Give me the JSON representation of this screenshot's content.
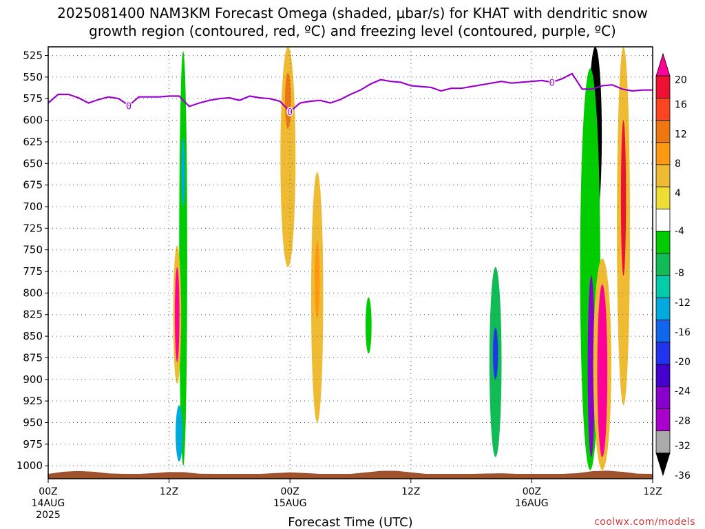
{
  "title_line1": "2025081400 NAM3KM Forecast Omega (shaded, μbar/s) for KHAT with dendritic snow",
  "title_line2": "growth region (contoured, red, ºC) and freezing level (contoured, purple, ºC)",
  "credit": "coolwx.com/models",
  "chart_data": {
    "type": "heatmap",
    "title": "2025081400 NAM3KM Forecast Omega (shaded, μbar/s) for KHAT with dendritic snow growth region (contoured, red, ºC) and freezing level (contoured, purple, ºC)",
    "xlabel": "Forecast Time (UTC)",
    "ylabel": "",
    "x_range_hours": [
      0,
      60
    ],
    "y_range_hPa": [
      1015,
      515
    ],
    "y_ticks": [
      525,
      550,
      575,
      600,
      625,
      650,
      675,
      700,
      725,
      750,
      775,
      800,
      825,
      850,
      875,
      900,
      925,
      950,
      975,
      1000
    ],
    "y_tick_labels": [
      "525",
      "550",
      "575",
      "600",
      "625",
      "650",
      "675",
      "700",
      "725",
      "750",
      "775",
      "800",
      "825",
      "850",
      "875",
      "900",
      "925",
      "950",
      "975",
      "1000"
    ],
    "x_ticks": [
      {
        "hour": 0,
        "label": "00Z",
        "label2": "14AUG",
        "label3": "2025"
      },
      {
        "hour": 12,
        "label": "12Z",
        "label2": "",
        "label3": ""
      },
      {
        "hour": 24,
        "label": "00Z",
        "label2": "15AUG",
        "label3": ""
      },
      {
        "hour": 36,
        "label": "12Z",
        "label2": "",
        "label3": ""
      },
      {
        "hour": 48,
        "label": "00Z",
        "label2": "16AUG",
        "label3": ""
      },
      {
        "hour": 60,
        "label": "12Z",
        "label2": "",
        "label3": ""
      }
    ],
    "grid": true,
    "colorbar": {
      "labels": [
        "20",
        "16",
        "12",
        "8",
        "4",
        "-4",
        "-8",
        "-12",
        "-16",
        "-20",
        "-24",
        "-28",
        "-32",
        "-36"
      ],
      "colors": [
        "#ff0099",
        "#ee1133",
        "#ff4422",
        "#ee7711",
        "#ff9911",
        "#eebb33",
        "#eedd33",
        "#ffffff",
        "#00cc00",
        "#11bb55",
        "#00ccaa",
        "#00aadd",
        "#1166ee",
        "#2233ee",
        "#4400cc",
        "#8800cc",
        "#aa00cc",
        "#aaaaaa",
        "#000000"
      ]
    },
    "freezing_level_label": "0",
    "freezing_level": {
      "hours": [
        0,
        1,
        2,
        3,
        4,
        5,
        6,
        7,
        8,
        9,
        10,
        11,
        12,
        13,
        14,
        15,
        16,
        17,
        18,
        19,
        20,
        21,
        22,
        23,
        24,
        25,
        26,
        27,
        28,
        29,
        30,
        31,
        32,
        33,
        34,
        35,
        36,
        37,
        38,
        39,
        40,
        41,
        42,
        43,
        44,
        45,
        46,
        47,
        48,
        49,
        50,
        51,
        52,
        53,
        54,
        55,
        56,
        57,
        58,
        59,
        60
      ],
      "hPa": [
        580,
        570,
        570,
        574,
        580,
        576,
        573,
        575,
        583,
        573,
        573,
        573,
        572,
        572,
        584,
        580,
        577,
        575,
        574,
        577,
        572,
        574,
        575,
        578,
        590,
        580,
        578,
        577,
        580,
        576,
        570,
        565,
        558,
        553,
        555,
        556,
        560,
        561,
        562,
        566,
        563,
        563,
        561,
        559,
        557,
        555,
        557,
        556,
        555,
        554,
        556,
        552,
        546,
        564,
        564,
        560,
        559,
        564,
        566,
        565,
        565
      ]
    },
    "regions": [
      {
        "name": "t12-green",
        "hour": 13.4,
        "p_top": 520,
        "p_bot": 1000,
        "width_h": 0.8,
        "value": -6
      },
      {
        "name": "t12-teal",
        "hour": 13.4,
        "p_top": 620,
        "p_bot": 700,
        "width_h": 0.35,
        "value": -12
      },
      {
        "name": "t12-low-teal",
        "hour": 13.0,
        "p_top": 930,
        "p_bot": 995,
        "width_h": 0.7,
        "value": -12
      },
      {
        "name": "t12-pos",
        "hour": 12.8,
        "p_top": 745,
        "p_bot": 905,
        "width_h": 0.8,
        "value": 10
      },
      {
        "name": "t12-core",
        "hour": 12.8,
        "p_top": 770,
        "p_bot": 880,
        "width_h": 0.45,
        "value": 20
      },
      {
        "name": "t24-pos",
        "hour": 23.8,
        "p_top": 515,
        "p_bot": 770,
        "width_h": 1.5,
        "value": 8
      },
      {
        "name": "t24-core",
        "hour": 23.8,
        "p_top": 545,
        "p_bot": 610,
        "width_h": 0.6,
        "value": 14
      },
      {
        "name": "t26-pos",
        "hour": 26.7,
        "p_top": 660,
        "p_bot": 950,
        "width_h": 1.2,
        "value": 8
      },
      {
        "name": "t26-core",
        "hour": 26.7,
        "p_top": 740,
        "p_bot": 830,
        "width_h": 0.5,
        "value": 12
      },
      {
        "name": "t31-neg",
        "hour": 31.8,
        "p_top": 805,
        "p_bot": 870,
        "width_h": 0.6,
        "value": -6
      },
      {
        "name": "t44-neg",
        "hour": 44.4,
        "p_top": 770,
        "p_bot": 990,
        "width_h": 1.2,
        "value": -8
      },
      {
        "name": "t44-core",
        "hour": 44.4,
        "p_top": 840,
        "p_bot": 900,
        "width_h": 0.5,
        "value": -20
      },
      {
        "name": "t54-black",
        "hour": 54.3,
        "p_top": 515,
        "p_bot": 720,
        "width_h": 1.3,
        "value": -40
      },
      {
        "name": "t54-neg",
        "hour": 53.8,
        "p_top": 540,
        "p_bot": 1005,
        "width_h": 2.0,
        "value": -6
      },
      {
        "name": "t54-low",
        "hour": 53.9,
        "p_top": 780,
        "p_bot": 990,
        "width_h": 0.7,
        "value": -28
      },
      {
        "name": "t55-pos",
        "hour": 55.0,
        "p_top": 760,
        "p_bot": 1005,
        "width_h": 1.8,
        "value": 10
      },
      {
        "name": "t55-core",
        "hour": 55.0,
        "p_top": 790,
        "p_bot": 990,
        "width_h": 1.0,
        "value": 20
      },
      {
        "name": "t57-pos",
        "hour": 57.1,
        "p_top": 515,
        "p_bot": 930,
        "width_h": 1.3,
        "value": 8
      },
      {
        "name": "t57-core",
        "hour": 57.1,
        "p_top": 600,
        "p_bot": 780,
        "width_h": 0.5,
        "value": 18
      }
    ]
  }
}
